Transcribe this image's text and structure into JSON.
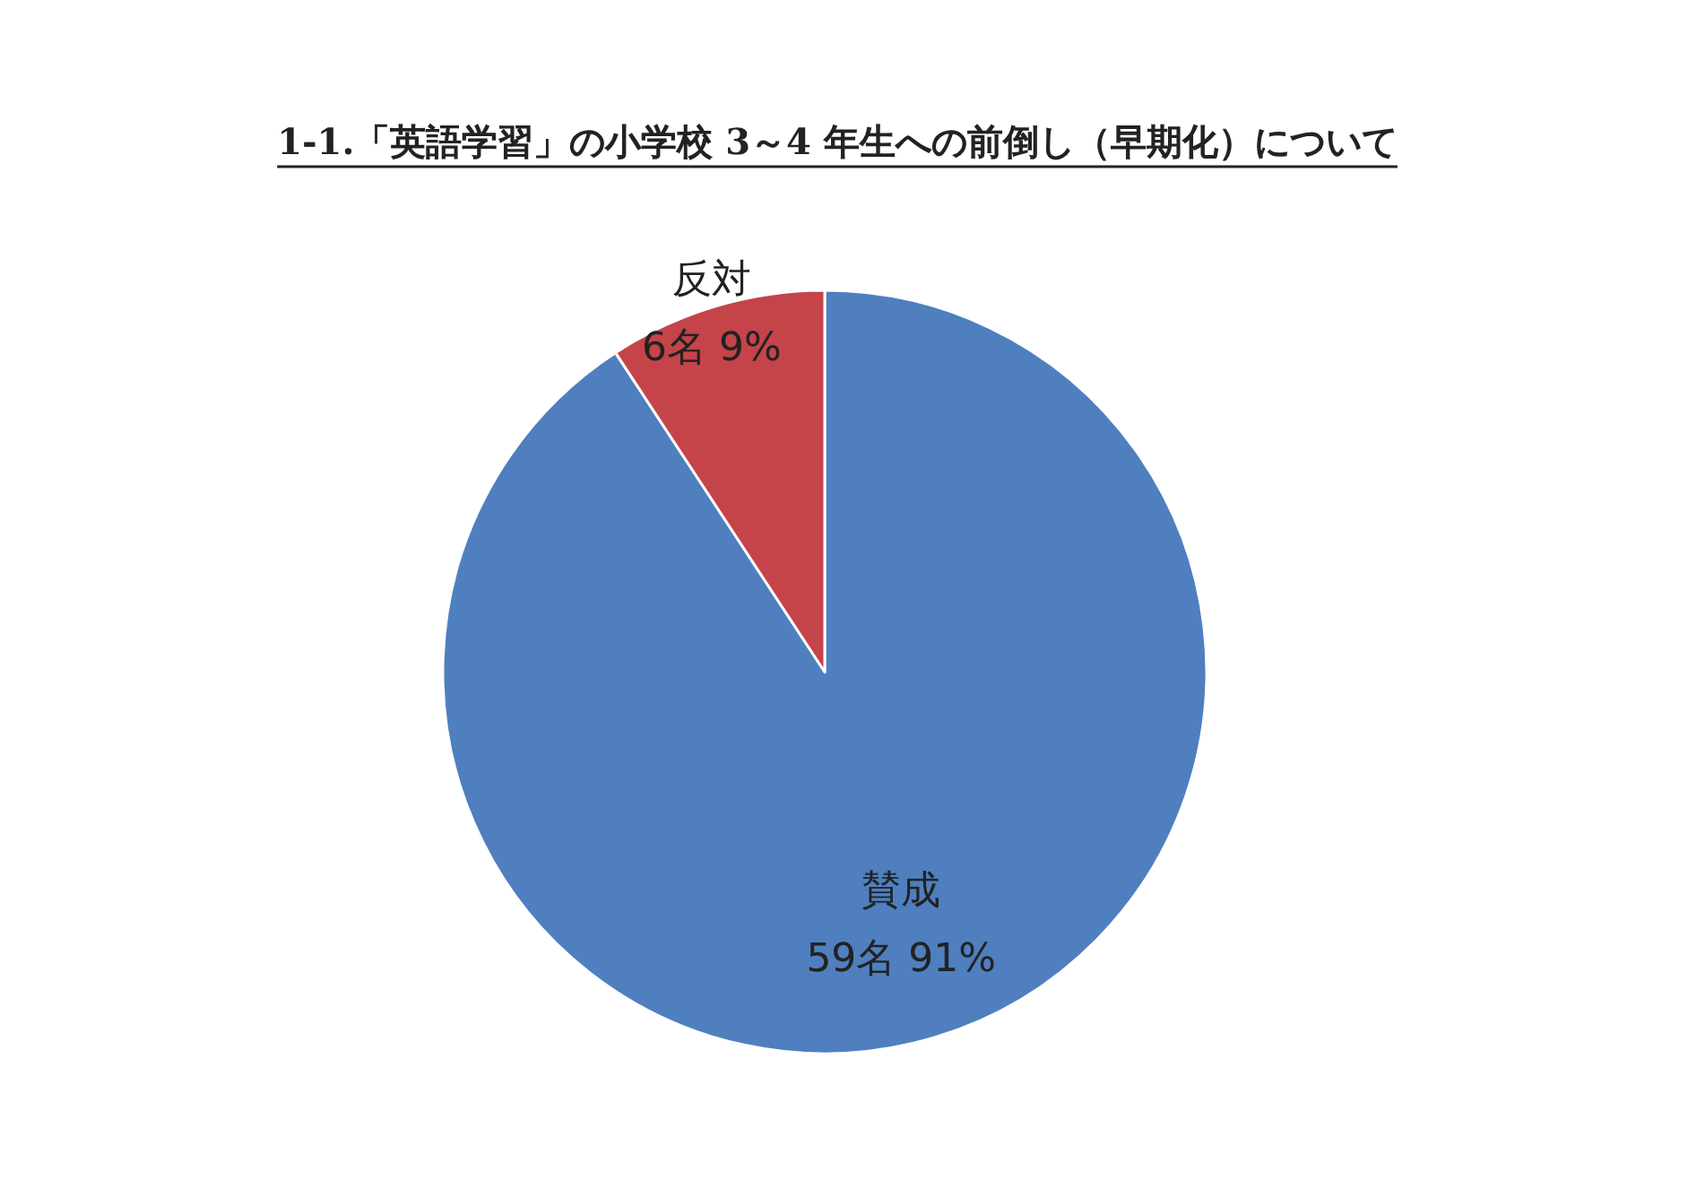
{
  "chart_data": {
    "type": "pie",
    "title": "1-1.「英語学習」の小学校 3～4 年生への前倒し（早期化）について",
    "categories": [
      "賛成",
      "反対"
    ],
    "values": [
      59,
      6
    ],
    "value_labels": [
      "59名 91%",
      "6名 9%"
    ],
    "colors": [
      "#4f7fbf",
      "#c4444a"
    ]
  }
}
